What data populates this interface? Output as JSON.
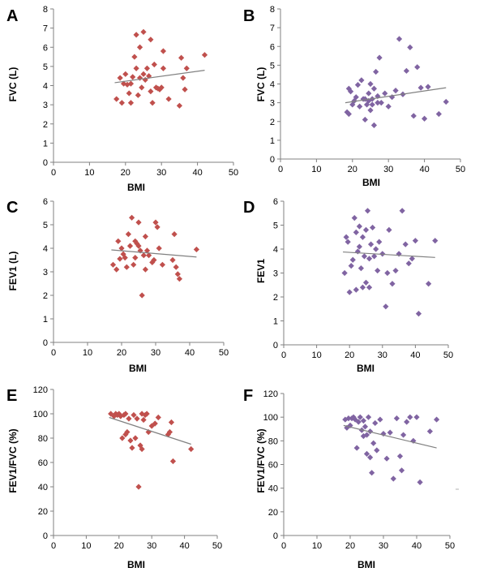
{
  "colors": {
    "red": "#c0504d",
    "purple": "#8064a2",
    "trend": "#808080",
    "axis": "#808080"
  },
  "chart_data": [
    {
      "panel": "A",
      "type": "scatter",
      "xlabel": "BMI",
      "ylabel": "FVC (L)",
      "xlim": [
        0,
        50
      ],
      "ylim": [
        0,
        8
      ],
      "xticks": [
        0,
        10,
        20,
        30,
        40,
        50
      ],
      "yticks": [
        0,
        1,
        2,
        3,
        4,
        5,
        6,
        7,
        8
      ],
      "marker_color": "red",
      "trendline": [
        [
          17,
          4.15
        ],
        [
          42,
          4.8
        ]
      ],
      "points": [
        [
          17.5,
          3.3
        ],
        [
          18.5,
          4.4
        ],
        [
          19,
          3.1
        ],
        [
          19.5,
          4.1
        ],
        [
          20,
          4.6
        ],
        [
          20.5,
          4.05
        ],
        [
          21,
          3.6
        ],
        [
          21.5,
          3.1
        ],
        [
          21.5,
          4.1
        ],
        [
          22,
          4.45
        ],
        [
          22.5,
          5.5
        ],
        [
          23,
          4.9
        ],
        [
          23,
          6.65
        ],
        [
          23.5,
          3.5
        ],
        [
          24,
          4.4
        ],
        [
          24,
          6.0
        ],
        [
          24.5,
          3.9
        ],
        [
          25,
          4.6
        ],
        [
          25,
          6.8
        ],
        [
          25.5,
          4.3
        ],
        [
          26,
          4.9
        ],
        [
          26.5,
          4.5
        ],
        [
          27,
          3.7
        ],
        [
          27,
          6.4
        ],
        [
          27.5,
          3.1
        ],
        [
          28,
          5.1
        ],
        [
          28.5,
          3.9
        ],
        [
          29,
          3.85
        ],
        [
          29.5,
          3.8
        ],
        [
          30,
          3.9
        ],
        [
          30.5,
          4.9
        ],
        [
          30.5,
          5.8
        ],
        [
          32,
          3.3
        ],
        [
          35,
          2.95
        ],
        [
          35.5,
          5.45
        ],
        [
          36,
          4.4
        ],
        [
          36.5,
          3.8
        ],
        [
          37,
          4.9
        ],
        [
          42,
          5.6
        ]
      ]
    },
    {
      "panel": "B",
      "type": "scatter",
      "xlabel": "BMI",
      "ylabel": "FVC (L)",
      "xlim": [
        0,
        50
      ],
      "ylim": [
        0,
        8
      ],
      "xticks": [
        0,
        10,
        20,
        30,
        40,
        50
      ],
      "yticks": [
        0,
        1,
        2,
        3,
        4,
        5,
        6,
        7,
        8
      ],
      "marker_color": "purple",
      "trendline": [
        [
          18,
          3.0
        ],
        [
          46,
          3.8
        ]
      ],
      "points": [
        [
          18.5,
          2.5
        ],
        [
          19,
          2.4
        ],
        [
          19,
          3.75
        ],
        [
          19.5,
          3.6
        ],
        [
          20,
          2.9
        ],
        [
          20.5,
          3.1
        ],
        [
          21,
          3.3
        ],
        [
          21.5,
          3.95
        ],
        [
          22,
          2.8
        ],
        [
          22.5,
          4.2
        ],
        [
          23,
          3.2
        ],
        [
          23.5,
          2.1
        ],
        [
          23.5,
          3.2
        ],
        [
          24,
          2.9
        ],
        [
          24.5,
          3.5
        ],
        [
          24.5,
          3.1
        ],
        [
          25,
          4.0
        ],
        [
          25,
          2.6
        ],
        [
          25.5,
          3.2
        ],
        [
          25.5,
          2.9
        ],
        [
          26,
          3.75
        ],
        [
          26,
          1.8
        ],
        [
          26.5,
          4.65
        ],
        [
          27,
          3.0
        ],
        [
          27,
          3.35
        ],
        [
          27.5,
          5.4
        ],
        [
          28,
          3.0
        ],
        [
          29,
          3.5
        ],
        [
          30,
          2.8
        ],
        [
          31,
          3.3
        ],
        [
          32,
          3.65
        ],
        [
          33,
          6.4
        ],
        [
          34,
          3.45
        ],
        [
          35,
          4.7
        ],
        [
          36,
          5.95
        ],
        [
          37,
          2.3
        ],
        [
          38,
          4.9
        ],
        [
          39,
          3.8
        ],
        [
          40,
          2.15
        ],
        [
          41,
          3.85
        ],
        [
          44,
          2.4
        ],
        [
          46,
          3.05
        ]
      ]
    },
    {
      "panel": "C",
      "type": "scatter",
      "xlabel": "BMI",
      "ylabel": "FEV1 (L)",
      "xlim": [
        0,
        50
      ],
      "ylim": [
        0,
        6
      ],
      "xticks": [
        0,
        10,
        20,
        30,
        40,
        50
      ],
      "yticks": [
        0,
        1,
        2,
        3,
        4,
        5,
        6
      ],
      "marker_color": "red",
      "trendline": [
        [
          17,
          3.93
        ],
        [
          42,
          3.63
        ]
      ],
      "points": [
        [
          17.5,
          3.3
        ],
        [
          18.5,
          3.1
        ],
        [
          19,
          4.3
        ],
        [
          19.5,
          3.55
        ],
        [
          20,
          4.0
        ],
        [
          20.5,
          3.75
        ],
        [
          21,
          3.6
        ],
        [
          21.5,
          3.2
        ],
        [
          22,
          4.6
        ],
        [
          22.5,
          4.1
        ],
        [
          23,
          5.3
        ],
        [
          23.5,
          3.3
        ],
        [
          24,
          3.6
        ],
        [
          24,
          4.3
        ],
        [
          24.5,
          4.2
        ],
        [
          25,
          4.1
        ],
        [
          25,
          5.1
        ],
        [
          25.5,
          3.9
        ],
        [
          26,
          2.0
        ],
        [
          26.5,
          3.7
        ],
        [
          27,
          3.1
        ],
        [
          27,
          4.5
        ],
        [
          27.5,
          3.9
        ],
        [
          28,
          3.7
        ],
        [
          29,
          3.4
        ],
        [
          29.5,
          3.5
        ],
        [
          30,
          5.1
        ],
        [
          30.5,
          4.9
        ],
        [
          31,
          4.0
        ],
        [
          32,
          3.3
        ],
        [
          35,
          3.5
        ],
        [
          35.5,
          4.6
        ],
        [
          36,
          3.2
        ],
        [
          36.5,
          2.9
        ],
        [
          37,
          2.7
        ],
        [
          42,
          3.95
        ]
      ]
    },
    {
      "panel": "D",
      "type": "scatter",
      "xlabel": "BMI",
      "ylabel": "FEV1",
      "xlim": [
        0,
        50
      ],
      "ylim": [
        0,
        6
      ],
      "xticks": [
        0,
        10,
        20,
        30,
        40,
        50
      ],
      "yticks": [
        0,
        1,
        2,
        3,
        4,
        5,
        6
      ],
      "marker_color": "purple",
      "trendline": [
        [
          18,
          3.88
        ],
        [
          46,
          3.65
        ]
      ],
      "points": [
        [
          18.5,
          3.0
        ],
        [
          19,
          4.5
        ],
        [
          19.5,
          4.3
        ],
        [
          20,
          2.2
        ],
        [
          20.5,
          3.3
        ],
        [
          21,
          3.55
        ],
        [
          21.5,
          5.3
        ],
        [
          22,
          4.7
        ],
        [
          22,
          2.3
        ],
        [
          22.5,
          3.9
        ],
        [
          23,
          4.1
        ],
        [
          23,
          4.95
        ],
        [
          23.5,
          3.2
        ],
        [
          24,
          4.5
        ],
        [
          24,
          2.4
        ],
        [
          24.5,
          3.7
        ],
        [
          25,
          4.8
        ],
        [
          25,
          2.6
        ],
        [
          25.5,
          5.6
        ],
        [
          26,
          3.6
        ],
        [
          26,
          2.4
        ],
        [
          26.5,
          4.2
        ],
        [
          27,
          4.9
        ],
        [
          27.5,
          3.7
        ],
        [
          28,
          4.0
        ],
        [
          28.5,
          3.1
        ],
        [
          29,
          4.3
        ],
        [
          30,
          3.8
        ],
        [
          31,
          1.6
        ],
        [
          31.5,
          3.0
        ],
        [
          32,
          4.8
        ],
        [
          33,
          2.55
        ],
        [
          34,
          3.1
        ],
        [
          35,
          3.8
        ],
        [
          36,
          5.6
        ],
        [
          37,
          4.2
        ],
        [
          38,
          3.4
        ],
        [
          39,
          3.6
        ],
        [
          40,
          4.35
        ],
        [
          41,
          1.3
        ],
        [
          44,
          2.55
        ],
        [
          46,
          4.35
        ]
      ]
    },
    {
      "panel": "E",
      "type": "scatter",
      "xlabel": "BMI",
      "ylabel": "FEV1/FVC (%)",
      "xlim": [
        0,
        50
      ],
      "ylim": [
        0,
        120
      ],
      "xticks": [
        0,
        10,
        20,
        30,
        40,
        50
      ],
      "yticks": [
        0,
        20,
        40,
        60,
        80,
        100,
        120
      ],
      "marker_color": "red",
      "trendline": [
        [
          17,
          97
        ],
        [
          42,
          75
        ]
      ],
      "points": [
        [
          17.5,
          100
        ],
        [
          18.5,
          98
        ],
        [
          19,
          100
        ],
        [
          19.5,
          99
        ],
        [
          20,
          100
        ],
        [
          20.5,
          98
        ],
        [
          21,
          80
        ],
        [
          21.5,
          99
        ],
        [
          22,
          100
        ],
        [
          22,
          83
        ],
        [
          22.5,
          85
        ],
        [
          23,
          96
        ],
        [
          23.5,
          78
        ],
        [
          24,
          72
        ],
        [
          24.5,
          99
        ],
        [
          25,
          80
        ],
        [
          25.5,
          96
        ],
        [
          26,
          40
        ],
        [
          26.5,
          74
        ],
        [
          27,
          100
        ],
        [
          27,
          71
        ],
        [
          27.5,
          95
        ],
        [
          28,
          99
        ],
        [
          28.5,
          100
        ],
        [
          29,
          85
        ],
        [
          30,
          90
        ],
        [
          31,
          92
        ],
        [
          32,
          97
        ],
        [
          35,
          83
        ],
        [
          35.5,
          85
        ],
        [
          36,
          93
        ],
        [
          36.5,
          61
        ],
        [
          42,
          71
        ]
      ]
    },
    {
      "panel": "F",
      "type": "scatter",
      "xlabel": "BMI",
      "ylabel": "FEV1/FVC (%)",
      "xlim": [
        0,
        50
      ],
      "ylim": [
        0,
        120
      ],
      "xticks": [
        0,
        10,
        20,
        30,
        40,
        50
      ],
      "yticks": [
        0,
        20,
        40,
        60,
        80,
        100,
        120
      ],
      "marker_color": "purple",
      "trendline": [
        [
          18,
          93
        ],
        [
          46,
          74
        ]
      ],
      "points": [
        [
          18.5,
          98
        ],
        [
          19,
          91
        ],
        [
          19.5,
          99
        ],
        [
          20,
          93
        ],
        [
          20.5,
          99
        ],
        [
          21,
          100
        ],
        [
          21.5,
          98
        ],
        [
          22,
          74
        ],
        [
          22.5,
          96
        ],
        [
          23,
          100
        ],
        [
          23.5,
          89
        ],
        [
          24,
          84
        ],
        [
          24,
          97
        ],
        [
          24.5,
          92
        ],
        [
          25,
          85
        ],
        [
          25,
          69
        ],
        [
          25.5,
          100
        ],
        [
          26,
          88
        ],
        [
          26,
          66
        ],
        [
          26.5,
          53
        ],
        [
          27,
          78
        ],
        [
          27.5,
          95
        ],
        [
          28,
          72
        ],
        [
          29,
          98
        ],
        [
          30,
          86
        ],
        [
          31,
          65
        ],
        [
          32,
          87
        ],
        [
          33,
          48
        ],
        [
          34,
          99
        ],
        [
          35,
          67
        ],
        [
          35.5,
          55
        ],
        [
          36,
          85
        ],
        [
          37,
          96
        ],
        [
          38,
          100
        ],
        [
          39,
          80
        ],
        [
          40,
          100
        ],
        [
          41,
          45
        ],
        [
          44,
          88
        ],
        [
          46,
          98
        ]
      ]
    }
  ]
}
